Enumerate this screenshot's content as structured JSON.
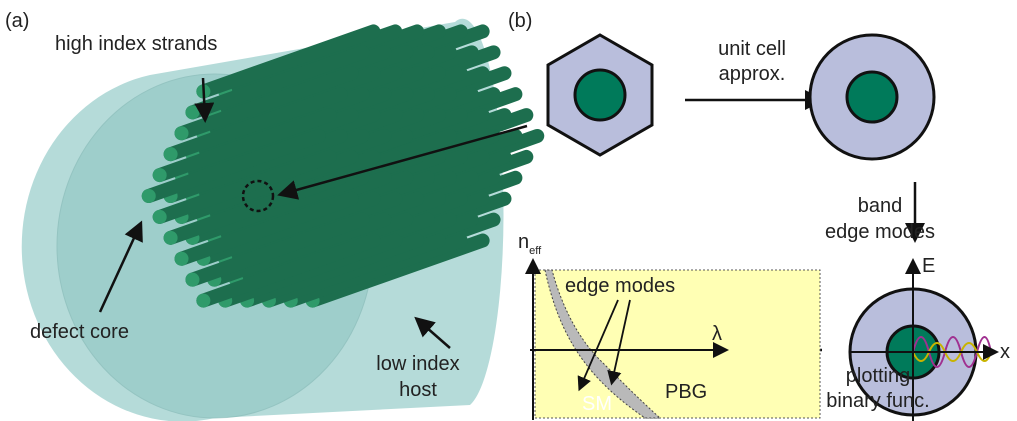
{
  "panel_a": {
    "label": "(a)",
    "strands": "high index strands",
    "core": "defect core",
    "host": [
      "low index",
      "host"
    ]
  },
  "panel_b": {
    "label": "(b)",
    "approx": [
      "unit cell",
      "approx."
    ],
    "band": [
      "band",
      "edge modes"
    ],
    "plotting": [
      "plotting",
      "binary func."
    ],
    "axis_e": "E",
    "axis_x": "x",
    "plot": {
      "y_label": "n",
      "y_label_sub": "eff",
      "x_label": "λ",
      "edge_modes": "edge modes",
      "sm": "SM",
      "pbg": "PBG"
    }
  }
}
